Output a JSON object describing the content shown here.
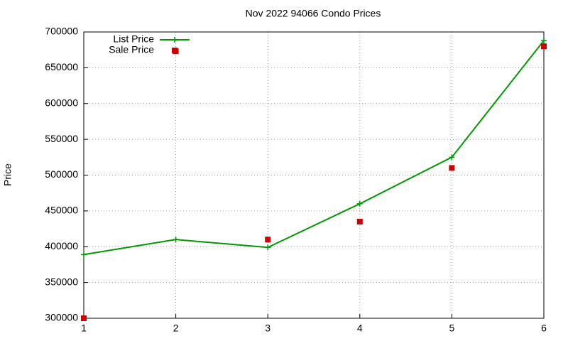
{
  "chart_data": {
    "type": "line",
    "title": "Nov 2022 94066 Condo Prices",
    "y_label": "Price",
    "x": [
      1,
      2,
      3,
      4,
      5,
      6
    ],
    "series": [
      {
        "name": "List Price",
        "type": "line",
        "color": "#009900",
        "values": [
          389000,
          410000,
          399000,
          460000,
          525000,
          688000
        ]
      },
      {
        "name": "Sale Price",
        "type": "scatter",
        "color": "#cc0000",
        "values": [
          300000,
          673000,
          410000,
          435000,
          510000,
          680000
        ]
      }
    ],
    "xlim": [
      1,
      6
    ],
    "xticks": [
      1,
      2,
      3,
      4,
      5,
      6
    ],
    "ylim": [
      300000,
      700000
    ],
    "yticks": [
      300000,
      350000,
      400000,
      450000,
      500000,
      550000,
      600000,
      650000,
      700000
    ],
    "grid": true,
    "legend": "top-left"
  }
}
